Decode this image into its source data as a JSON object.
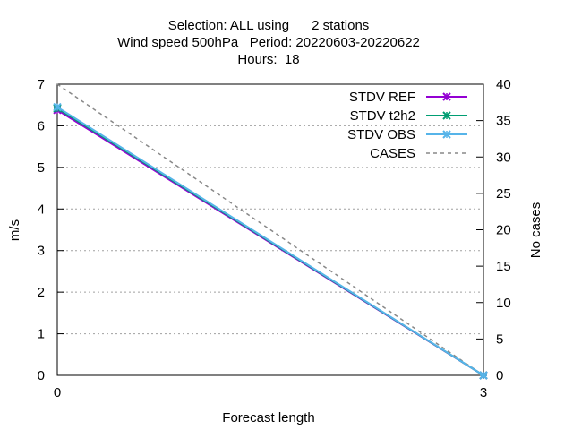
{
  "chart_data": {
    "type": "line",
    "title_lines": [
      "Selection: ALL using      2 stations",
      "Wind speed 500hPa   Period: 20220603-20220622",
      "Hours:  18"
    ],
    "xlabel": "Forecast length",
    "ylabel": "m/s",
    "y2label": "No cases",
    "x": [
      0,
      3
    ],
    "xlim": [
      0,
      3
    ],
    "xticks": [
      "0",
      "3"
    ],
    "ylim": [
      0,
      7
    ],
    "yticks": [
      "0",
      "1",
      "2",
      "3",
      "4",
      "5",
      "6",
      "7"
    ],
    "y2lim": [
      0,
      40
    ],
    "y2ticks": [
      "0",
      "5",
      "10",
      "15",
      "20",
      "25",
      "30",
      "35",
      "40"
    ],
    "grid": "horizontal dotted",
    "legend_position": "top-right",
    "series": [
      {
        "name": "STDV REF",
        "axis": "y",
        "values": [
          6.38,
          0.0
        ],
        "color": "#9400d3",
        "marker": "x"
      },
      {
        "name": "STDV t2h2",
        "axis": "y",
        "values": [
          6.42,
          0.0
        ],
        "color": "#009e73",
        "marker": "x"
      },
      {
        "name": "STDV OBS",
        "axis": "y",
        "values": [
          6.45,
          0.0
        ],
        "color": "#56b4e9",
        "marker": "x"
      },
      {
        "name": "CASES",
        "axis": "y2",
        "values": [
          40,
          0
        ],
        "color": "#888888",
        "dash": true
      }
    ]
  }
}
